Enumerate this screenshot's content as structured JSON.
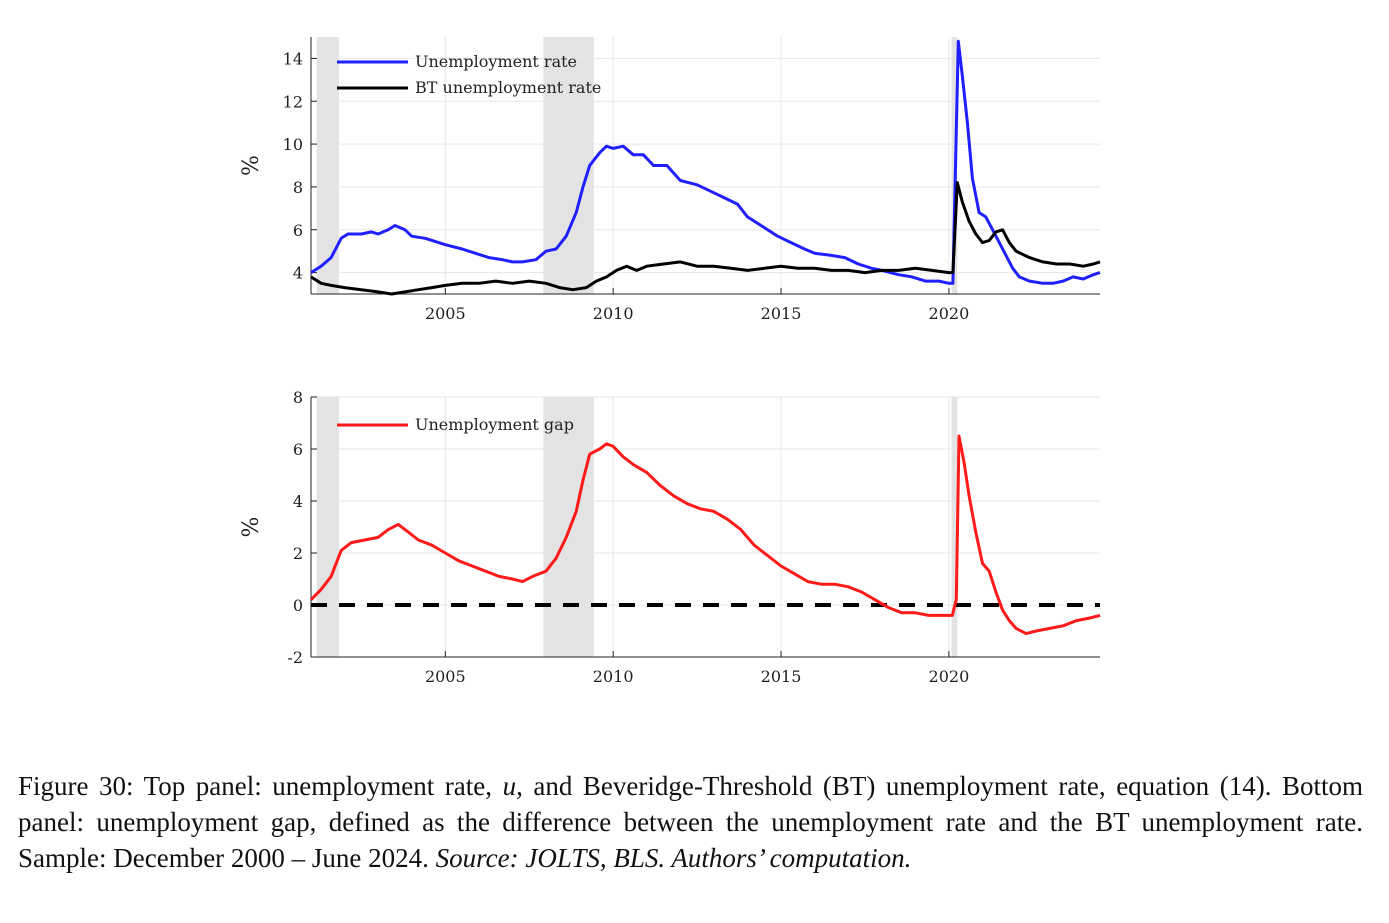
{
  "chart_data": [
    {
      "type": "line",
      "ylabel": "%",
      "xlim": [
        2001.0,
        2024.5
      ],
      "ylim": [
        3,
        15
      ],
      "yticks": [
        4,
        6,
        8,
        10,
        12,
        14
      ],
      "xticks": [
        2005,
        2010,
        2015,
        2020
      ],
      "recessions": [
        [
          2001.17,
          2001.83
        ],
        [
          2007.92,
          2009.42
        ],
        [
          2020.08,
          2020.25
        ]
      ],
      "grid": true,
      "legend_position": "top-left",
      "series": [
        {
          "name": "Unemployment rate",
          "color": "#1f1fff",
          "points": [
            [
              2001.0,
              4.0
            ],
            [
              2001.3,
              4.3
            ],
            [
              2001.6,
              4.7
            ],
            [
              2001.9,
              5.6
            ],
            [
              2002.1,
              5.8
            ],
            [
              2002.5,
              5.8
            ],
            [
              2002.8,
              5.9
            ],
            [
              2003.0,
              5.8
            ],
            [
              2003.3,
              6.0
            ],
            [
              2003.5,
              6.2
            ],
            [
              2003.8,
              6.0
            ],
            [
              2004.0,
              5.7
            ],
            [
              2004.4,
              5.6
            ],
            [
              2004.8,
              5.4
            ],
            [
              2005.0,
              5.3
            ],
            [
              2005.5,
              5.1
            ],
            [
              2005.9,
              4.9
            ],
            [
              2006.3,
              4.7
            ],
            [
              2006.7,
              4.6
            ],
            [
              2007.0,
              4.5
            ],
            [
              2007.3,
              4.5
            ],
            [
              2007.7,
              4.6
            ],
            [
              2008.0,
              5.0
            ],
            [
              2008.3,
              5.1
            ],
            [
              2008.6,
              5.7
            ],
            [
              2008.9,
              6.8
            ],
            [
              2009.1,
              8.0
            ],
            [
              2009.3,
              9.0
            ],
            [
              2009.6,
              9.6
            ],
            [
              2009.8,
              9.9
            ],
            [
              2010.0,
              9.8
            ],
            [
              2010.3,
              9.9
            ],
            [
              2010.6,
              9.5
            ],
            [
              2010.9,
              9.5
            ],
            [
              2011.2,
              9.0
            ],
            [
              2011.6,
              9.0
            ],
            [
              2012.0,
              8.3
            ],
            [
              2012.5,
              8.1
            ],
            [
              2012.9,
              7.8
            ],
            [
              2013.3,
              7.5
            ],
            [
              2013.7,
              7.2
            ],
            [
              2014.0,
              6.6
            ],
            [
              2014.5,
              6.1
            ],
            [
              2014.9,
              5.7
            ],
            [
              2015.3,
              5.4
            ],
            [
              2015.7,
              5.1
            ],
            [
              2016.0,
              4.9
            ],
            [
              2016.5,
              4.8
            ],
            [
              2016.9,
              4.7
            ],
            [
              2017.3,
              4.4
            ],
            [
              2017.7,
              4.2
            ],
            [
              2018.0,
              4.1
            ],
            [
              2018.5,
              3.9
            ],
            [
              2018.9,
              3.8
            ],
            [
              2019.3,
              3.6
            ],
            [
              2019.7,
              3.6
            ],
            [
              2020.0,
              3.5
            ],
            [
              2020.12,
              3.5
            ],
            [
              2020.28,
              14.8
            ],
            [
              2020.4,
              13.2
            ],
            [
              2020.55,
              11.0
            ],
            [
              2020.7,
              8.4
            ],
            [
              2020.9,
              6.8
            ],
            [
              2021.1,
              6.6
            ],
            [
              2021.3,
              6.0
            ],
            [
              2021.5,
              5.4
            ],
            [
              2021.7,
              4.8
            ],
            [
              2021.9,
              4.2
            ],
            [
              2022.1,
              3.8
            ],
            [
              2022.4,
              3.6
            ],
            [
              2022.8,
              3.5
            ],
            [
              2023.1,
              3.5
            ],
            [
              2023.4,
              3.6
            ],
            [
              2023.7,
              3.8
            ],
            [
              2024.0,
              3.7
            ],
            [
              2024.3,
              3.9
            ],
            [
              2024.5,
              4.0
            ]
          ]
        },
        {
          "name": "BT unemployment rate",
          "color": "#000000",
          "points": [
            [
              2001.0,
              3.8
            ],
            [
              2001.3,
              3.5
            ],
            [
              2001.6,
              3.4
            ],
            [
              2002.0,
              3.3
            ],
            [
              2002.5,
              3.2
            ],
            [
              2003.0,
              3.1
            ],
            [
              2003.4,
              3.0
            ],
            [
              2003.8,
              3.1
            ],
            [
              2004.2,
              3.2
            ],
            [
              2004.6,
              3.3
            ],
            [
              2005.0,
              3.4
            ],
            [
              2005.5,
              3.5
            ],
            [
              2006.0,
              3.5
            ],
            [
              2006.5,
              3.6
            ],
            [
              2007.0,
              3.5
            ],
            [
              2007.5,
              3.6
            ],
            [
              2008.0,
              3.5
            ],
            [
              2008.4,
              3.3
            ],
            [
              2008.8,
              3.2
            ],
            [
              2009.2,
              3.3
            ],
            [
              2009.5,
              3.6
            ],
            [
              2009.8,
              3.8
            ],
            [
              2010.1,
              4.1
            ],
            [
              2010.4,
              4.3
            ],
            [
              2010.7,
              4.1
            ],
            [
              2011.0,
              4.3
            ],
            [
              2011.5,
              4.4
            ],
            [
              2012.0,
              4.5
            ],
            [
              2012.5,
              4.3
            ],
            [
              2013.0,
              4.3
            ],
            [
              2013.5,
              4.2
            ],
            [
              2014.0,
              4.1
            ],
            [
              2014.5,
              4.2
            ],
            [
              2015.0,
              4.3
            ],
            [
              2015.5,
              4.2
            ],
            [
              2016.0,
              4.2
            ],
            [
              2016.5,
              4.1
            ],
            [
              2017.0,
              4.1
            ],
            [
              2017.5,
              4.0
            ],
            [
              2018.0,
              4.1
            ],
            [
              2018.5,
              4.1
            ],
            [
              2019.0,
              4.2
            ],
            [
              2019.5,
              4.1
            ],
            [
              2020.0,
              4.0
            ],
            [
              2020.12,
              4.0
            ],
            [
              2020.25,
              8.2
            ],
            [
              2020.4,
              7.3
            ],
            [
              2020.6,
              6.4
            ],
            [
              2020.8,
              5.8
            ],
            [
              2021.0,
              5.4
            ],
            [
              2021.2,
              5.5
            ],
            [
              2021.4,
              5.9
            ],
            [
              2021.6,
              6.0
            ],
            [
              2021.8,
              5.4
            ],
            [
              2022.0,
              5.0
            ],
            [
              2022.4,
              4.7
            ],
            [
              2022.8,
              4.5
            ],
            [
              2023.2,
              4.4
            ],
            [
              2023.6,
              4.4
            ],
            [
              2024.0,
              4.3
            ],
            [
              2024.3,
              4.4
            ],
            [
              2024.5,
              4.5
            ]
          ]
        }
      ]
    },
    {
      "type": "line",
      "ylabel": "%",
      "xlim": [
        2001.0,
        2024.5
      ],
      "ylim": [
        -2,
        8
      ],
      "yticks": [
        -2,
        0,
        2,
        4,
        6,
        8
      ],
      "xticks": [
        2005,
        2010,
        2015,
        2020
      ],
      "recessions": [
        [
          2001.17,
          2001.83
        ],
        [
          2007.92,
          2009.42
        ],
        [
          2020.08,
          2020.25
        ]
      ],
      "grid": true,
      "legend_position": "top-left",
      "zero_line": true,
      "series": [
        {
          "name": "Unemployment gap",
          "color": "#ff1a1a",
          "points": [
            [
              2001.0,
              0.2
            ],
            [
              2001.3,
              0.6
            ],
            [
              2001.6,
              1.1
            ],
            [
              2001.9,
              2.1
            ],
            [
              2002.2,
              2.4
            ],
            [
              2002.6,
              2.5
            ],
            [
              2003.0,
              2.6
            ],
            [
              2003.3,
              2.9
            ],
            [
              2003.6,
              3.1
            ],
            [
              2003.9,
              2.8
            ],
            [
              2004.2,
              2.5
            ],
            [
              2004.6,
              2.3
            ],
            [
              2005.0,
              2.0
            ],
            [
              2005.4,
              1.7
            ],
            [
              2005.8,
              1.5
            ],
            [
              2006.2,
              1.3
            ],
            [
              2006.6,
              1.1
            ],
            [
              2007.0,
              1.0
            ],
            [
              2007.3,
              0.9
            ],
            [
              2007.6,
              1.1
            ],
            [
              2008.0,
              1.3
            ],
            [
              2008.3,
              1.8
            ],
            [
              2008.6,
              2.6
            ],
            [
              2008.9,
              3.6
            ],
            [
              2009.1,
              4.8
            ],
            [
              2009.3,
              5.8
            ],
            [
              2009.6,
              6.0
            ],
            [
              2009.8,
              6.2
            ],
            [
              2010.0,
              6.1
            ],
            [
              2010.3,
              5.7
            ],
            [
              2010.6,
              5.4
            ],
            [
              2011.0,
              5.1
            ],
            [
              2011.4,
              4.6
            ],
            [
              2011.8,
              4.2
            ],
            [
              2012.2,
              3.9
            ],
            [
              2012.6,
              3.7
            ],
            [
              2013.0,
              3.6
            ],
            [
              2013.4,
              3.3
            ],
            [
              2013.8,
              2.9
            ],
            [
              2014.2,
              2.3
            ],
            [
              2014.6,
              1.9
            ],
            [
              2015.0,
              1.5
            ],
            [
              2015.4,
              1.2
            ],
            [
              2015.8,
              0.9
            ],
            [
              2016.2,
              0.8
            ],
            [
              2016.6,
              0.8
            ],
            [
              2017.0,
              0.7
            ],
            [
              2017.4,
              0.5
            ],
            [
              2017.8,
              0.2
            ],
            [
              2018.2,
              -0.1
            ],
            [
              2018.6,
              -0.3
            ],
            [
              2019.0,
              -0.3
            ],
            [
              2019.4,
              -0.4
            ],
            [
              2019.8,
              -0.4
            ],
            [
              2020.1,
              -0.4
            ],
            [
              2020.22,
              0.2
            ],
            [
              2020.3,
              6.5
            ],
            [
              2020.45,
              5.5
            ],
            [
              2020.6,
              4.2
            ],
            [
              2020.8,
              2.8
            ],
            [
              2021.0,
              1.6
            ],
            [
              2021.2,
              1.3
            ],
            [
              2021.4,
              0.5
            ],
            [
              2021.6,
              -0.2
            ],
            [
              2021.8,
              -0.6
            ],
            [
              2022.0,
              -0.9
            ],
            [
              2022.3,
              -1.1
            ],
            [
              2022.6,
              -1.0
            ],
            [
              2023.0,
              -0.9
            ],
            [
              2023.4,
              -0.8
            ],
            [
              2023.8,
              -0.6
            ],
            [
              2024.2,
              -0.5
            ],
            [
              2024.5,
              -0.4
            ]
          ]
        }
      ]
    }
  ],
  "figure": {
    "caption_label": "Figure 30:",
    "caption_main_a": "Top panel: unemployment rate,",
    "caption_var": "u",
    "caption_main_b": ", and Beveridge-Threshold (BT) unemployment rate, equation (14). Bottom panel: unemployment gap, defined as the difference between the unemployment rate and the BT unemployment rate. Sample: December 2000 – June 2024.",
    "caption_source": "Source: JOLTS, BLS. Authors’ computation."
  }
}
